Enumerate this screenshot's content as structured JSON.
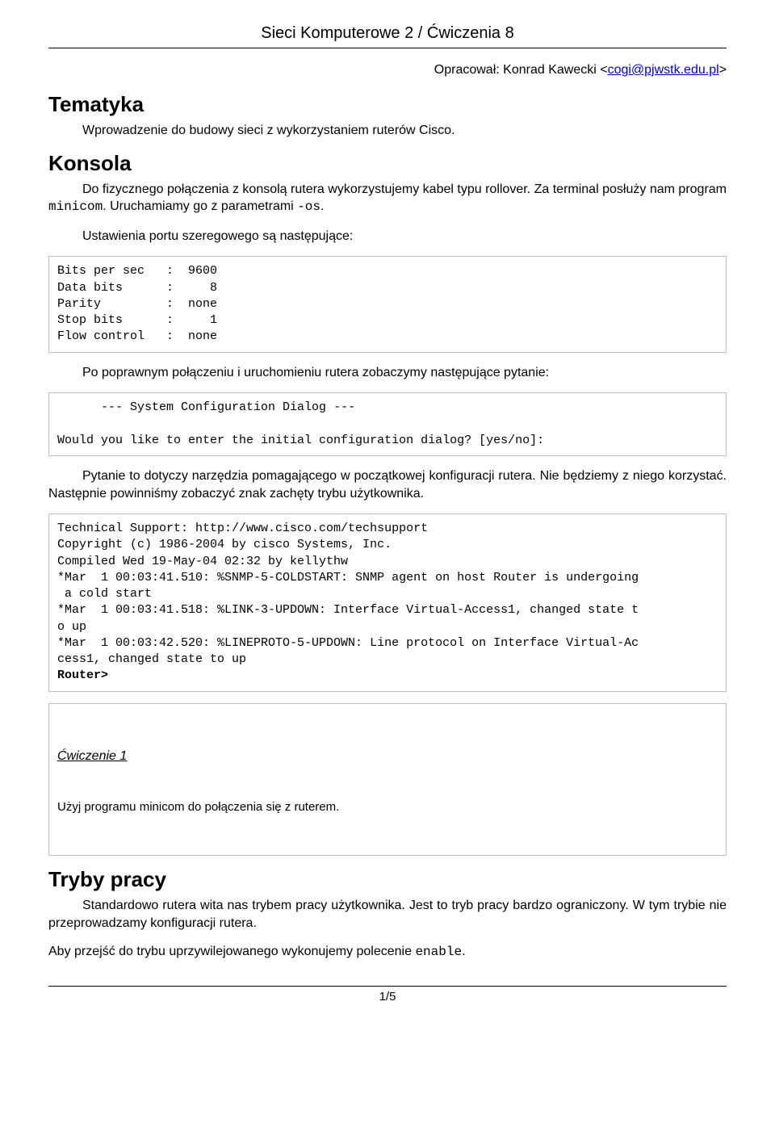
{
  "header": {
    "title": "Sieci Komputerowe 2 / Ćwiczenia 8"
  },
  "author": {
    "prefix": "Opracował: Konrad Kawecki <",
    "email": "cogi@pjwstk.edu.pl",
    "suffix": ">"
  },
  "sections": {
    "tematyka": {
      "title": "Tematyka",
      "body": "Wprowadzenie do budowy sieci z wykorzystaniem ruterów Cisco."
    },
    "konsola": {
      "title": "Konsola",
      "para1_a": "Do fizycznego połączenia z konsolą rutera wykorzystujemy kabel typu rollover. Za terminal posłuży nam program ",
      "para1_code1": "minicom",
      "para1_b": ". Uruchamiamy go z parametrami ",
      "para1_code2": "-os",
      "para1_c": ".",
      "para2": "Ustawienia portu szeregowego są następujące:",
      "code_serial": "Bits per sec   :  9600\nData bits      :     8\nParity         :  none\nStop bits      :     1\nFlow control   :  none",
      "para3": "Po poprawnym połączeniu i uruchomieniu rutera zobaczymy następujące pytanie:",
      "code_dialog": "      --- System Configuration Dialog ---\n\nWould you like to enter the initial configuration dialog? [yes/no]:",
      "para4": "Pytanie to dotyczy narzędzia pomagającego w początkowej konfiguracji rutera. Nie będziemy z niego korzystać. Następnie powinniśmy zobaczyć znak zachęty trybu użytkownika.",
      "code_boot_pre": "Technical Support: http://www.cisco.com/techsupport\nCopyright (c) 1986-2004 by cisco Systems, Inc.\nCompiled Wed 19-May-04 02:32 by kellythw\n*Mar  1 00:03:41.510: %SNMP-5-COLDSTART: SNMP agent on host Router is undergoing\n a cold start\n*Mar  1 00:03:41.518: %LINK-3-UPDOWN: Interface Virtual-Access1, changed state t\no up\n*Mar  1 00:03:42.520: %LINEPROTO-5-UPDOWN: Line protocol on Interface Virtual-Ac\ncess1, changed state to up\n",
      "code_boot_prompt": "Router>",
      "exercise1_title": "Ćwiczenie 1",
      "exercise1_body": "Użyj programu minicom do połączenia się z ruterem."
    },
    "tryby": {
      "title": "Tryby pracy",
      "para1": "Standardowo rutera wita nas trybem pracy użytkownika. Jest to tryb pracy bardzo ograniczony. W tym trybie nie przeprowadzamy konfiguracji rutera.",
      "para2_a": "Aby przejść do trybu uprzywilejowanego wykonujemy polecenie ",
      "para2_code": "enable",
      "para2_b": "."
    }
  },
  "footer": {
    "page": "1/5"
  },
  "colors": {
    "text": "#000000",
    "link": "#0000cc",
    "box_border": "#bfbfbf",
    "background": "#ffffff"
  },
  "typography": {
    "body_fontsize_pt": 12,
    "header_fontsize_pt": 15,
    "section_fontsize_pt": 20,
    "code_font": "Courier New"
  }
}
